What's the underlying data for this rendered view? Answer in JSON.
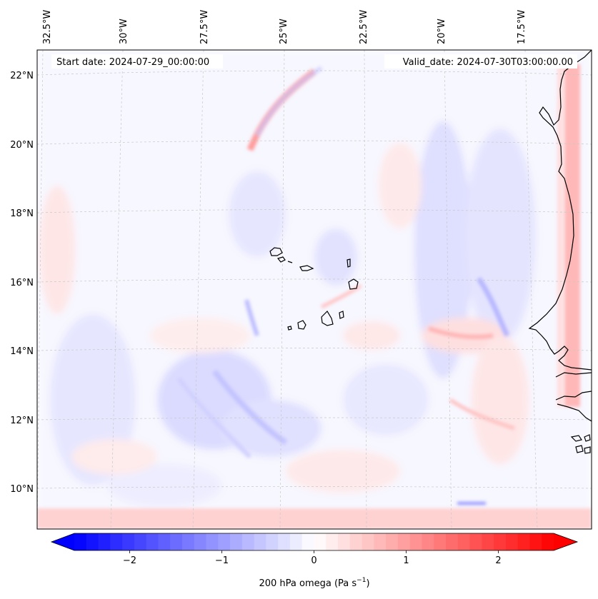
{
  "map": {
    "start_date": "Start date: 2024-07-29_00:00:00",
    "valid_date": "Valid_date: 2024-07-30T03:00:00.00",
    "lon_labels": [
      "32.5°W",
      "30°W",
      "27.5°W",
      "25°W",
      "22.5°W",
      "20°W",
      "17.5°W"
    ],
    "lat_labels": [
      "22°N",
      "20°N",
      "18°N",
      "16°N",
      "14°N",
      "12°N",
      "10°N"
    ]
  },
  "colorbar": {
    "label": "200 hPa omega (Pa s",
    "label_sup": "−1",
    "label_end": ")",
    "ticks": [
      "−2",
      "−1",
      "0",
      "1",
      "2"
    ],
    "tick_values": [
      -2,
      -1,
      0,
      1,
      2
    ],
    "min": -2.6,
    "max": 2.6,
    "low_color": "#0000ff",
    "high_color": "#ff0000"
  },
  "colors": {
    "coast": "#000000",
    "grid": "#c8c8c8",
    "neg_light": "#dcdcff",
    "pos_light": "#ffdede"
  }
}
